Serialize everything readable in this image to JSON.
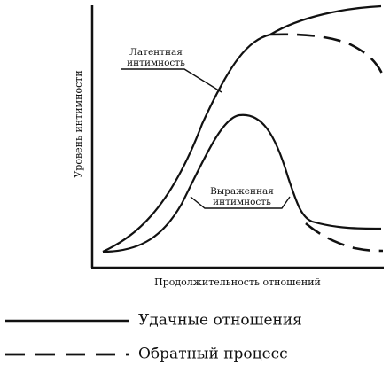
{
  "axes": {
    "y_label": "Уровень интимности",
    "x_label": "Продолжительность отношений"
  },
  "curves": {
    "latent": {
      "label_line1": "Латентная",
      "label_line2": "интимность"
    },
    "expressed": {
      "label_line1": "Выраженная",
      "label_line2": "интимность"
    }
  },
  "legend": {
    "items": [
      {
        "label": "Удачные отношения",
        "line_style": "solid"
      },
      {
        "label": "Обратный процесс",
        "line_style": "dashed"
      }
    ]
  },
  "colors": {
    "ink": "#111111",
    "background": "#ffffff"
  }
}
